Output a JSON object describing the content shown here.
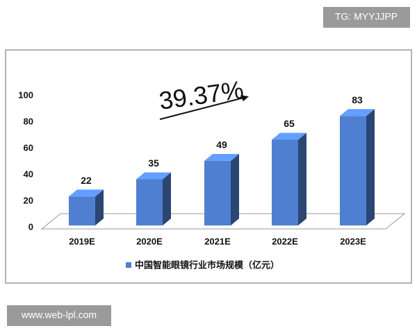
{
  "chart_data": {
    "type": "bar3d",
    "annotation": "39.37%",
    "categories": [
      "2019E",
      "2020E",
      "2021E",
      "2022E",
      "2023E"
    ],
    "series": [
      {
        "name": "中国智能眼镜行业市场规模（亿元）",
        "color": "#4f7fd0",
        "values": [
          22,
          35,
          49,
          65,
          83
        ]
      }
    ],
    "ylim": [
      0,
      100
    ],
    "yticks": [
      0,
      20,
      40,
      60,
      80,
      100
    ]
  },
  "watermarks": [
    "TG: MYYJJPP",
    "www.web-lpl.com"
  ]
}
